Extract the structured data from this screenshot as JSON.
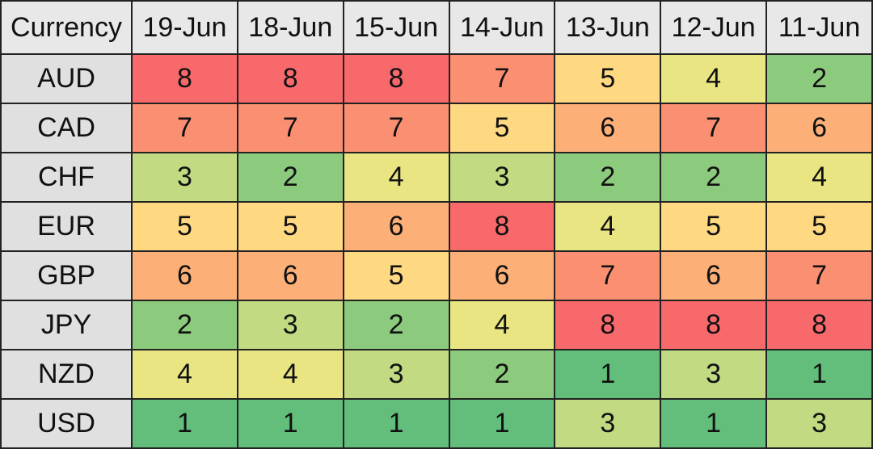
{
  "table": {
    "header": [
      "Currency",
      "19-Jun",
      "18-Jun",
      "15-Jun",
      "14-Jun",
      "13-Jun",
      "12-Jun",
      "11-Jun"
    ],
    "rows": [
      [
        "AUD",
        8,
        8,
        8,
        7,
        5,
        4,
        2
      ],
      [
        "CAD",
        7,
        7,
        7,
        5,
        6,
        7,
        6
      ],
      [
        "CHF",
        3,
        2,
        4,
        3,
        2,
        2,
        4
      ],
      [
        "EUR",
        5,
        5,
        6,
        8,
        4,
        5,
        5
      ],
      [
        "GBP",
        6,
        6,
        5,
        6,
        7,
        6,
        7
      ],
      [
        "JPY",
        2,
        3,
        2,
        4,
        8,
        8,
        8
      ],
      [
        "NZD",
        4,
        4,
        3,
        2,
        1,
        3,
        1
      ],
      [
        "USD",
        1,
        1,
        1,
        1,
        3,
        1,
        3
      ]
    ],
    "color_scale": {
      "1": "#63be7b",
      "2": "#8ccb7e",
      "3": "#c2db82",
      "4": "#e9e583",
      "5": "#fed981",
      "6": "#fcb078",
      "7": "#fa8f72",
      "8": "#f8696b"
    }
  }
}
